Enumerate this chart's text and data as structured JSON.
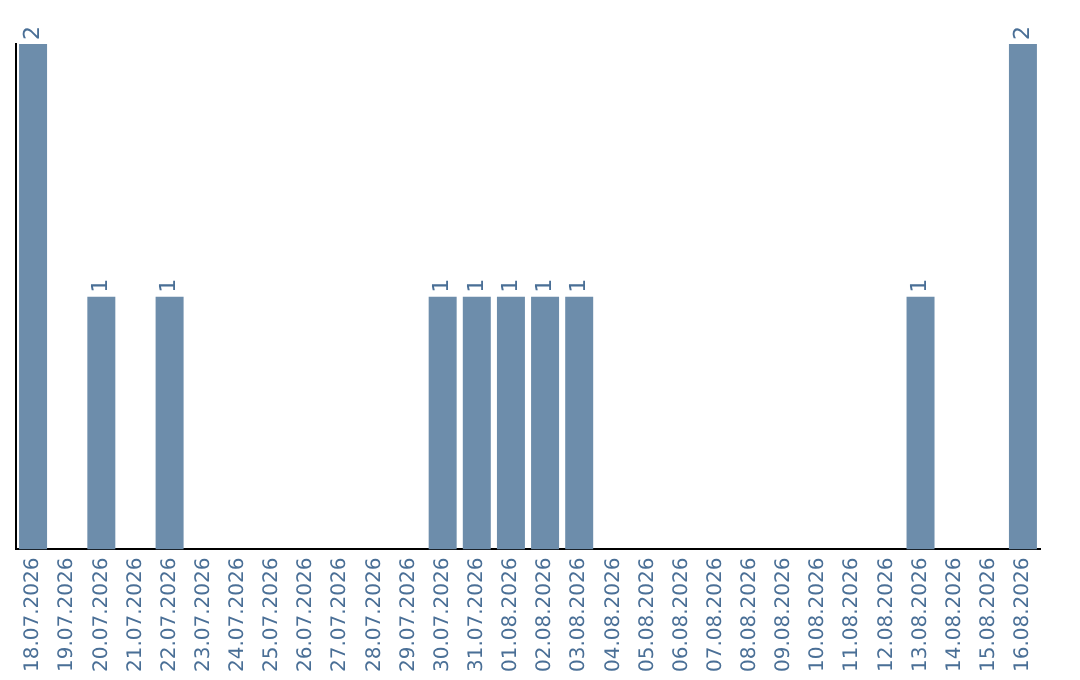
{
  "chart_data": {
    "type": "bar",
    "categories": [
      "18.07.2026",
      "19.07.2026",
      "20.07.2026",
      "21.07.2026",
      "22.07.2026",
      "23.07.2026",
      "24.07.2026",
      "25.07.2026",
      "26.07.2026",
      "27.07.2026",
      "28.07.2026",
      "29.07.2026",
      "30.07.2026",
      "31.07.2026",
      "01.08.2026",
      "02.08.2026",
      "03.08.2026",
      "04.08.2026",
      "05.08.2026",
      "06.08.2026",
      "07.08.2026",
      "08.08.2026",
      "09.08.2026",
      "10.08.2026",
      "11.08.2026",
      "12.08.2026",
      "13.08.2026",
      "14.08.2026",
      "15.08.2026",
      "16.08.2026"
    ],
    "values": [
      2,
      0,
      1,
      0,
      1,
      0,
      0,
      0,
      0,
      0,
      0,
      0,
      1,
      1,
      1,
      1,
      1,
      0,
      0,
      0,
      0,
      0,
      0,
      0,
      0,
      0,
      1,
      0,
      0,
      2
    ],
    "value_labels": [
      "2",
      null,
      "1",
      null,
      "1",
      null,
      null,
      null,
      null,
      null,
      null,
      null,
      "1",
      "1",
      "1",
      "1",
      "1",
      null,
      null,
      null,
      null,
      null,
      null,
      null,
      null,
      null,
      "1",
      null,
      null,
      "2"
    ],
    "color": "#6d8dab",
    "grid": false,
    "legend": false,
    "tick_labels": "x"
  }
}
